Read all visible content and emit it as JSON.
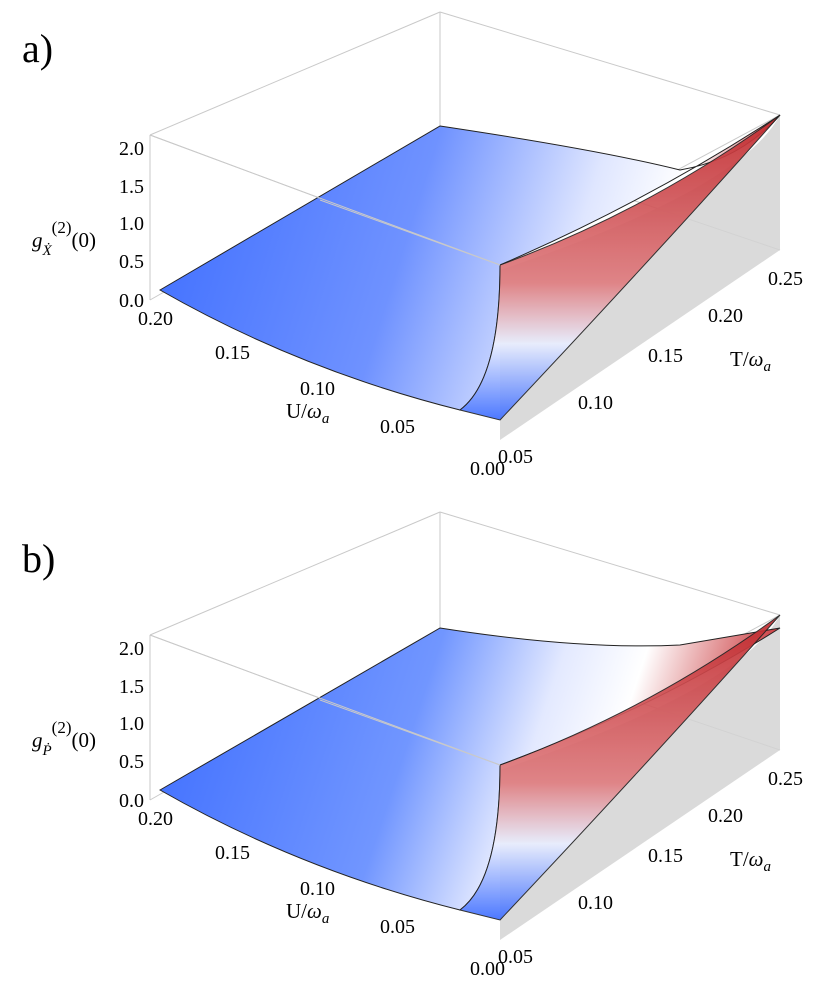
{
  "chart_data": [
    {
      "type": "surface",
      "panel_label": "a)",
      "zlabel": {
        "base": "g",
        "sub": "Ẋ",
        "sup": "(2)",
        "tail": "(0)"
      },
      "ulabel": {
        "base": "U/",
        "greek": "ω",
        "sub": "a"
      },
      "tlabel": {
        "base": "T/",
        "greek": "ω",
        "sub": "a"
      },
      "z_ticks": [
        "0.0",
        "0.5",
        "1.0",
        "1.5",
        "2.0"
      ],
      "u_ticks": [
        "0.20",
        "0.15",
        "0.10",
        "0.05",
        "0.00"
      ],
      "t_ticks": [
        "0.05",
        "0.10",
        "0.15",
        "0.20",
        "0.25"
      ],
      "zlim": [
        0,
        2.1
      ],
      "ulim": [
        0,
        0.2
      ],
      "tlim": [
        0,
        0.27
      ],
      "colors": {
        "low": "#3d6dff",
        "mid": "#ffffff",
        "high": "#c8262a"
      },
      "surface_edges": {
        "u_max_edge_z": [
          0.0,
          0.35,
          0.75,
          1.2,
          1.65,
          2.0
        ],
        "t_max_edge_z": [
          2.0,
          1.75,
          1.55,
          1.42,
          1.38,
          1.4
        ],
        "u_zero_edge_z": [
          0.0,
          0.3,
          0.7,
          1.1,
          1.5,
          1.9
        ]
      }
    },
    {
      "type": "surface",
      "panel_label": "b)",
      "zlabel": {
        "base": "g",
        "sub": "Ṗ",
        "sup": "(2)",
        "tail": "(0)"
      },
      "ulabel": {
        "base": "U/",
        "greek": "ω",
        "sub": "a"
      },
      "tlabel": {
        "base": "T/",
        "greek": "ω",
        "sub": "a"
      },
      "z_ticks": [
        "0.0",
        "0.5",
        "1.0",
        "1.5",
        "2.0"
      ],
      "u_ticks": [
        "0.20",
        "0.15",
        "0.10",
        "0.05",
        "0.00"
      ],
      "t_ticks": [
        "0.05",
        "0.10",
        "0.15",
        "0.20",
        "0.25"
      ],
      "zlim": [
        0,
        2.1
      ],
      "ulim": [
        0,
        0.2
      ],
      "tlim": [
        0,
        0.27
      ],
      "colors": {
        "low": "#3d6dff",
        "mid": "#ffffff",
        "high": "#c8262a"
      },
      "surface_edges": {
        "u_max_edge_z": [
          0.0,
          0.35,
          0.75,
          1.2,
          1.65,
          2.0
        ],
        "t_max_edge_z": [
          2.0,
          1.8,
          1.7,
          1.68,
          1.72,
          1.82
        ],
        "u_zero_edge_z": [
          0.0,
          0.3,
          0.7,
          1.1,
          1.5,
          1.9
        ]
      }
    }
  ]
}
